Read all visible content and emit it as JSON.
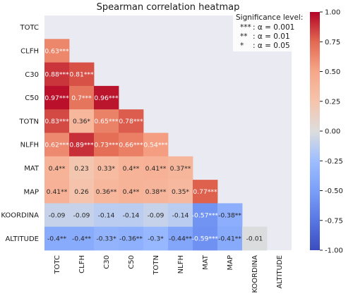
{
  "chart_data": {
    "type": "heatmap",
    "title": "Spearman correlation heatmap",
    "row_labels": [
      "TOTC",
      "CLFH",
      "C30",
      "C50",
      "TOTN",
      "NLFH",
      "MAT",
      "MAP",
      "KOORDINA",
      "ALTITUDE"
    ],
    "col_labels": [
      "TOTC",
      "CLFH",
      "C30",
      "C50",
      "TOTN",
      "NLFH",
      "MAT",
      "MAP",
      "KOORDINA",
      "ALTITUDE"
    ],
    "cells": [
      {
        "row": 1,
        "col": 0,
        "value": 0.63,
        "label": "0.63***"
      },
      {
        "row": 2,
        "col": 0,
        "value": 0.88,
        "label": "0.88***"
      },
      {
        "row": 2,
        "col": 1,
        "value": 0.81,
        "label": "0.81***"
      },
      {
        "row": 3,
        "col": 0,
        "value": 0.97,
        "label": "0.97***"
      },
      {
        "row": 3,
        "col": 1,
        "value": 0.7,
        "label": "0.7***"
      },
      {
        "row": 3,
        "col": 2,
        "value": 0.96,
        "label": "0.96***"
      },
      {
        "row": 4,
        "col": 0,
        "value": 0.83,
        "label": "0.83***"
      },
      {
        "row": 4,
        "col": 1,
        "value": 0.36,
        "label": "0.36*"
      },
      {
        "row": 4,
        "col": 2,
        "value": 0.65,
        "label": "0.65***"
      },
      {
        "row": 4,
        "col": 3,
        "value": 0.78,
        "label": "0.78***"
      },
      {
        "row": 5,
        "col": 0,
        "value": 0.62,
        "label": "0.62***"
      },
      {
        "row": 5,
        "col": 1,
        "value": 0.89,
        "label": "0.89***"
      },
      {
        "row": 5,
        "col": 2,
        "value": 0.73,
        "label": "0.73***"
      },
      {
        "row": 5,
        "col": 3,
        "value": 0.66,
        "label": "0.66***"
      },
      {
        "row": 5,
        "col": 4,
        "value": 0.54,
        "label": "0.54***"
      },
      {
        "row": 6,
        "col": 0,
        "value": 0.4,
        "label": "0.4**"
      },
      {
        "row": 6,
        "col": 1,
        "value": 0.23,
        "label": "0.23"
      },
      {
        "row": 6,
        "col": 2,
        "value": 0.33,
        "label": "0.33*"
      },
      {
        "row": 6,
        "col": 3,
        "value": 0.4,
        "label": "0.4**"
      },
      {
        "row": 6,
        "col": 4,
        "value": 0.41,
        "label": "0.41**"
      },
      {
        "row": 6,
        "col": 5,
        "value": 0.37,
        "label": "0.37**"
      },
      {
        "row": 7,
        "col": 0,
        "value": 0.41,
        "label": "0.41**"
      },
      {
        "row": 7,
        "col": 1,
        "value": 0.26,
        "label": "0.26"
      },
      {
        "row": 7,
        "col": 2,
        "value": 0.36,
        "label": "0.36**"
      },
      {
        "row": 7,
        "col": 3,
        "value": 0.4,
        "label": "0.4**"
      },
      {
        "row": 7,
        "col": 4,
        "value": 0.38,
        "label": "0.38**"
      },
      {
        "row": 7,
        "col": 5,
        "value": 0.35,
        "label": "0.35*"
      },
      {
        "row": 7,
        "col": 6,
        "value": 0.77,
        "label": "0.77***"
      },
      {
        "row": 8,
        "col": 0,
        "value": -0.09,
        "label": "-0.09"
      },
      {
        "row": 8,
        "col": 1,
        "value": -0.09,
        "label": "-0.09"
      },
      {
        "row": 8,
        "col": 2,
        "value": -0.14,
        "label": "-0.14"
      },
      {
        "row": 8,
        "col": 3,
        "value": -0.14,
        "label": "-0.14"
      },
      {
        "row": 8,
        "col": 4,
        "value": -0.09,
        "label": "-0.09"
      },
      {
        "row": 8,
        "col": 5,
        "value": -0.14,
        "label": "-0.14"
      },
      {
        "row": 8,
        "col": 6,
        "value": -0.57,
        "label": "-0.57***"
      },
      {
        "row": 8,
        "col": 7,
        "value": -0.38,
        "label": "-0.38**"
      },
      {
        "row": 9,
        "col": 0,
        "value": -0.4,
        "label": "-0.4**"
      },
      {
        "row": 9,
        "col": 1,
        "value": -0.4,
        "label": "-0.4**"
      },
      {
        "row": 9,
        "col": 2,
        "value": -0.33,
        "label": "-0.33*"
      },
      {
        "row": 9,
        "col": 3,
        "value": -0.36,
        "label": "-0.36**"
      },
      {
        "row": 9,
        "col": 4,
        "value": -0.3,
        "label": "-0.3*"
      },
      {
        "row": 9,
        "col": 5,
        "value": -0.44,
        "label": "-0.44**"
      },
      {
        "row": 9,
        "col": 6,
        "value": -0.59,
        "label": "-0.59***"
      },
      {
        "row": 9,
        "col": 7,
        "value": -0.41,
        "label": "-0.41**"
      },
      {
        "row": 9,
        "col": 8,
        "value": -0.01,
        "label": "-0.01"
      }
    ],
    "colorbar": {
      "min": -1.0,
      "max": 1.0,
      "ticks": [
        "1.00",
        "0.75",
        "0.50",
        "0.25",
        "0.00",
        "-0.25",
        "-0.50",
        "-0.75",
        "-1.00"
      ],
      "colormap": "coolwarm"
    },
    "legend": {
      "title": "Significance level:",
      "entries": [
        {
          "symbol": "***",
          "text": ": α = 0.001"
        },
        {
          "symbol": "**",
          "text": ": α = 0.01"
        },
        {
          "symbol": "*",
          "text": ": α = 0.05"
        }
      ],
      "placement": "top-right"
    },
    "colors": {
      "background": "#eaeaf2",
      "low": "#3b4cc0",
      "mid": "#dddddd",
      "high": "#b40426"
    }
  }
}
